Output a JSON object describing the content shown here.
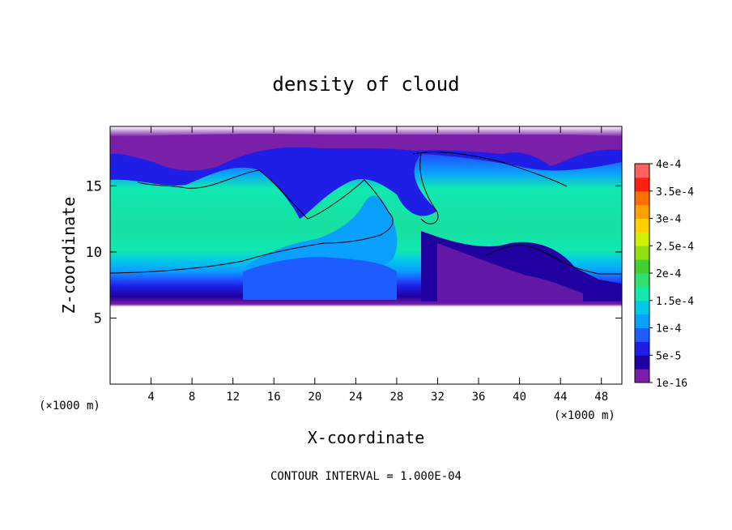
{
  "chart_data": {
    "type": "heatmap",
    "title": "density of cloud",
    "xlabel": "X-coordinate",
    "ylabel": "Z-coordinate",
    "x_unit_left": "(×1000 m)",
    "x_unit_right": "(×1000 m)",
    "xlim": [
      0,
      50
    ],
    "ylim": [
      0,
      19.5
    ],
    "x_ticks": [
      4,
      8,
      12,
      16,
      20,
      24,
      28,
      32,
      36,
      40,
      44,
      48
    ],
    "x_tick_labels": [
      "4",
      "8",
      "12",
      "16",
      "20",
      "24",
      "28",
      "32",
      "36",
      "40",
      "44",
      "48"
    ],
    "y_ticks": [
      5,
      10,
      15
    ],
    "y_tick_labels": [
      "5",
      "10",
      "15"
    ],
    "colorbar": {
      "levels": [
        1e-16,
        2.5e-05,
        5e-05,
        7.5e-05,
        0.0001,
        0.000125,
        0.00015,
        0.000175,
        0.0002,
        0.000225,
        0.00025,
        0.000275,
        0.0003,
        0.000325,
        0.00035,
        0.000375,
        0.0004
      ],
      "colors": [
        "#7a1fa8",
        "#2000a0",
        "#1e1ee6",
        "#1e5cff",
        "#0aa0ff",
        "#00c8e6",
        "#10e8b0",
        "#30e070",
        "#40d030",
        "#90e010",
        "#d0f000",
        "#ffd000",
        "#ffa000",
        "#ff7000",
        "#ff2010",
        "#ff6060"
      ],
      "labels": [
        "1e-16",
        "5e-5",
        "1e-4",
        "1.5e-4",
        "2e-4",
        "2.5e-4",
        "3e-4",
        "3.5e-4",
        "4e-4"
      ],
      "label_values": [
        1e-16,
        5e-05,
        0.0001,
        0.00015,
        0.0002,
        0.00025,
        0.0003,
        0.00035,
        0.0004
      ]
    },
    "contour_interval_text": "CONTOUR INTERVAL = 1.000E-04",
    "grid": false,
    "field_description_bands": [
      {
        "z_range": [
          6.5,
          8.5
        ],
        "value_range": [
          1e-16,
          5e-05
        ]
      },
      {
        "z_range": [
          9.5,
          15
        ],
        "value_range": [
          0.00015,
          0.0002
        ]
      },
      {
        "z_range": [
          15.5,
          18.5
        ],
        "value_range": [
          1e-16,
          0.0001
        ]
      }
    ]
  }
}
